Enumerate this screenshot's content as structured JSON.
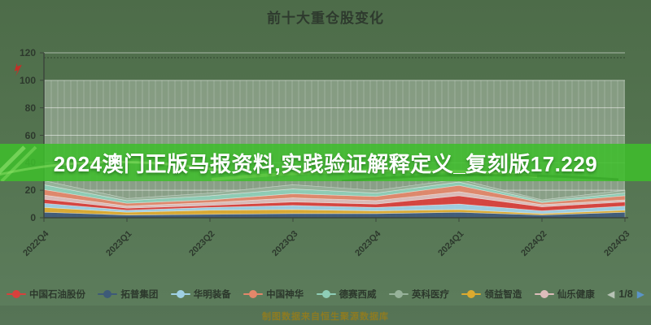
{
  "header": {
    "title": "前十大重仓股变化"
  },
  "watermark_banner": {
    "text": "2024澳门正版马报资料,实践验证解释定义_复刻版17.229",
    "color": "#3ebe2c"
  },
  "footer": {
    "source_text": "制图数据来自恒生聚源数据库"
  },
  "legend": {
    "items": [
      {
        "label": "中国石油股份",
        "color": "#d8403c"
      },
      {
        "label": "拓普集团",
        "color": "#3d5a78"
      },
      {
        "label": "华明装备",
        "color": "#9fd0e4"
      },
      {
        "label": "中国神华",
        "color": "#e2876a"
      },
      {
        "label": "德赛西威",
        "color": "#8ecdb6"
      },
      {
        "label": "英科医疗",
        "color": "#97b29a"
      },
      {
        "label": "领益智造",
        "color": "#dcaa2f"
      },
      {
        "label": "仙乐健康",
        "color": "#ddbdbb"
      }
    ],
    "pager": {
      "current": "1/8",
      "prev_icon": "◀",
      "next_icon": "▶"
    }
  },
  "chart_data": {
    "type": "area",
    "stacked": true,
    "title": "前十大重仓股变化",
    "categories": [
      "2022Q4",
      "2023Q1",
      "2023Q2",
      "2023Q3",
      "2023Q4",
      "2024Q1",
      "2024Q2",
      "2024Q3"
    ],
    "series": [
      {
        "name": "中国石油股份",
        "color": "#d8403c",
        "values": [
          3.0,
          1.5,
          1.5,
          2.5,
          2.5,
          6.0,
          3.0,
          3.0
        ]
      },
      {
        "name": "拓普集团",
        "color": "#3d5a78",
        "values": [
          4.0,
          2.0,
          2.5,
          3.0,
          3.0,
          4.0,
          2.0,
          4.0
        ]
      },
      {
        "name": "华明装备",
        "color": "#9fd0e4",
        "values": [
          3.0,
          1.5,
          2.0,
          3.0,
          2.5,
          4.0,
          2.0,
          3.0
        ]
      },
      {
        "name": "中国神华",
        "color": "#e2876a",
        "values": [
          4.0,
          2.0,
          2.0,
          3.0,
          3.0,
          4.5,
          1.5,
          3.0
        ]
      },
      {
        "name": "德赛西威",
        "color": "#8ecdb6",
        "values": [
          3.5,
          2.0,
          3.0,
          3.5,
          2.5,
          2.5,
          1.0,
          2.0
        ]
      },
      {
        "name": "英科医疗",
        "color": "#97b29a",
        "values": [
          3.0,
          1.5,
          2.0,
          3.0,
          2.0,
          2.0,
          1.0,
          2.0
        ]
      },
      {
        "name": "领益智造",
        "color": "#dcaa2f",
        "values": [
          3.5,
          2.0,
          3.0,
          3.0,
          2.0,
          2.0,
          1.0,
          1.5
        ]
      },
      {
        "name": "仙乐健康",
        "color": "#ddbdbb",
        "values": [
          3.0,
          1.5,
          2.0,
          3.0,
          2.5,
          3.0,
          1.5,
          1.5
        ]
      }
    ],
    "ylim": [
      0,
      120
    ],
    "yticks": [
      0,
      20,
      40,
      60,
      80,
      100,
      120
    ],
    "xlabel": "",
    "ylabel": "",
    "grid": true,
    "legend_position": "bottom"
  }
}
